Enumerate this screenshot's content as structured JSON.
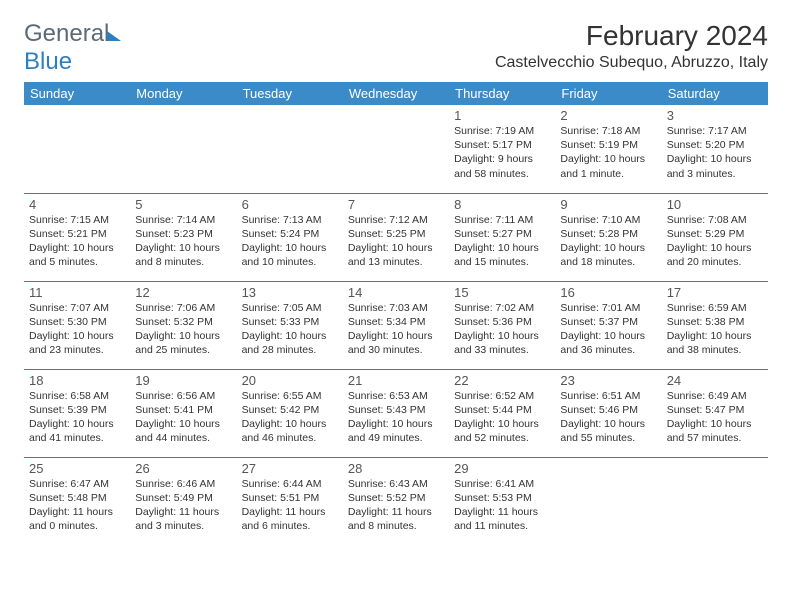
{
  "logo": {
    "text1": "General",
    "text2": "Blue"
  },
  "title": "February 2024",
  "location": "Castelvecchio Subequo, Abruzzo, Italy",
  "colors": {
    "header_bg": "#3b8bc9",
    "header_text": "#ffffff",
    "border": "#2d7fc0",
    "body_text": "#333333",
    "logo_gray": "#5a6a78",
    "logo_blue": "#2d7fc0",
    "background": "#ffffff"
  },
  "weekdays": [
    "Sunday",
    "Monday",
    "Tuesday",
    "Wednesday",
    "Thursday",
    "Friday",
    "Saturday"
  ],
  "weeks": [
    [
      null,
      null,
      null,
      null,
      {
        "n": "1",
        "sr": "Sunrise: 7:19 AM",
        "ss": "Sunset: 5:17 PM",
        "d1": "Daylight: 9 hours",
        "d2": "and 58 minutes."
      },
      {
        "n": "2",
        "sr": "Sunrise: 7:18 AM",
        "ss": "Sunset: 5:19 PM",
        "d1": "Daylight: 10 hours",
        "d2": "and 1 minute."
      },
      {
        "n": "3",
        "sr": "Sunrise: 7:17 AM",
        "ss": "Sunset: 5:20 PM",
        "d1": "Daylight: 10 hours",
        "d2": "and 3 minutes."
      }
    ],
    [
      {
        "n": "4",
        "sr": "Sunrise: 7:15 AM",
        "ss": "Sunset: 5:21 PM",
        "d1": "Daylight: 10 hours",
        "d2": "and 5 minutes."
      },
      {
        "n": "5",
        "sr": "Sunrise: 7:14 AM",
        "ss": "Sunset: 5:23 PM",
        "d1": "Daylight: 10 hours",
        "d2": "and 8 minutes."
      },
      {
        "n": "6",
        "sr": "Sunrise: 7:13 AM",
        "ss": "Sunset: 5:24 PM",
        "d1": "Daylight: 10 hours",
        "d2": "and 10 minutes."
      },
      {
        "n": "7",
        "sr": "Sunrise: 7:12 AM",
        "ss": "Sunset: 5:25 PM",
        "d1": "Daylight: 10 hours",
        "d2": "and 13 minutes."
      },
      {
        "n": "8",
        "sr": "Sunrise: 7:11 AM",
        "ss": "Sunset: 5:27 PM",
        "d1": "Daylight: 10 hours",
        "d2": "and 15 minutes."
      },
      {
        "n": "9",
        "sr": "Sunrise: 7:10 AM",
        "ss": "Sunset: 5:28 PM",
        "d1": "Daylight: 10 hours",
        "d2": "and 18 minutes."
      },
      {
        "n": "10",
        "sr": "Sunrise: 7:08 AM",
        "ss": "Sunset: 5:29 PM",
        "d1": "Daylight: 10 hours",
        "d2": "and 20 minutes."
      }
    ],
    [
      {
        "n": "11",
        "sr": "Sunrise: 7:07 AM",
        "ss": "Sunset: 5:30 PM",
        "d1": "Daylight: 10 hours",
        "d2": "and 23 minutes."
      },
      {
        "n": "12",
        "sr": "Sunrise: 7:06 AM",
        "ss": "Sunset: 5:32 PM",
        "d1": "Daylight: 10 hours",
        "d2": "and 25 minutes."
      },
      {
        "n": "13",
        "sr": "Sunrise: 7:05 AM",
        "ss": "Sunset: 5:33 PM",
        "d1": "Daylight: 10 hours",
        "d2": "and 28 minutes."
      },
      {
        "n": "14",
        "sr": "Sunrise: 7:03 AM",
        "ss": "Sunset: 5:34 PM",
        "d1": "Daylight: 10 hours",
        "d2": "and 30 minutes."
      },
      {
        "n": "15",
        "sr": "Sunrise: 7:02 AM",
        "ss": "Sunset: 5:36 PM",
        "d1": "Daylight: 10 hours",
        "d2": "and 33 minutes."
      },
      {
        "n": "16",
        "sr": "Sunrise: 7:01 AM",
        "ss": "Sunset: 5:37 PM",
        "d1": "Daylight: 10 hours",
        "d2": "and 36 minutes."
      },
      {
        "n": "17",
        "sr": "Sunrise: 6:59 AM",
        "ss": "Sunset: 5:38 PM",
        "d1": "Daylight: 10 hours",
        "d2": "and 38 minutes."
      }
    ],
    [
      {
        "n": "18",
        "sr": "Sunrise: 6:58 AM",
        "ss": "Sunset: 5:39 PM",
        "d1": "Daylight: 10 hours",
        "d2": "and 41 minutes."
      },
      {
        "n": "19",
        "sr": "Sunrise: 6:56 AM",
        "ss": "Sunset: 5:41 PM",
        "d1": "Daylight: 10 hours",
        "d2": "and 44 minutes."
      },
      {
        "n": "20",
        "sr": "Sunrise: 6:55 AM",
        "ss": "Sunset: 5:42 PM",
        "d1": "Daylight: 10 hours",
        "d2": "and 46 minutes."
      },
      {
        "n": "21",
        "sr": "Sunrise: 6:53 AM",
        "ss": "Sunset: 5:43 PM",
        "d1": "Daylight: 10 hours",
        "d2": "and 49 minutes."
      },
      {
        "n": "22",
        "sr": "Sunrise: 6:52 AM",
        "ss": "Sunset: 5:44 PM",
        "d1": "Daylight: 10 hours",
        "d2": "and 52 minutes."
      },
      {
        "n": "23",
        "sr": "Sunrise: 6:51 AM",
        "ss": "Sunset: 5:46 PM",
        "d1": "Daylight: 10 hours",
        "d2": "and 55 minutes."
      },
      {
        "n": "24",
        "sr": "Sunrise: 6:49 AM",
        "ss": "Sunset: 5:47 PM",
        "d1": "Daylight: 10 hours",
        "d2": "and 57 minutes."
      }
    ],
    [
      {
        "n": "25",
        "sr": "Sunrise: 6:47 AM",
        "ss": "Sunset: 5:48 PM",
        "d1": "Daylight: 11 hours",
        "d2": "and 0 minutes."
      },
      {
        "n": "26",
        "sr": "Sunrise: 6:46 AM",
        "ss": "Sunset: 5:49 PM",
        "d1": "Daylight: 11 hours",
        "d2": "and 3 minutes."
      },
      {
        "n": "27",
        "sr": "Sunrise: 6:44 AM",
        "ss": "Sunset: 5:51 PM",
        "d1": "Daylight: 11 hours",
        "d2": "and 6 minutes."
      },
      {
        "n": "28",
        "sr": "Sunrise: 6:43 AM",
        "ss": "Sunset: 5:52 PM",
        "d1": "Daylight: 11 hours",
        "d2": "and 8 minutes."
      },
      {
        "n": "29",
        "sr": "Sunrise: 6:41 AM",
        "ss": "Sunset: 5:53 PM",
        "d1": "Daylight: 11 hours",
        "d2": "and 11 minutes."
      },
      null,
      null
    ]
  ]
}
